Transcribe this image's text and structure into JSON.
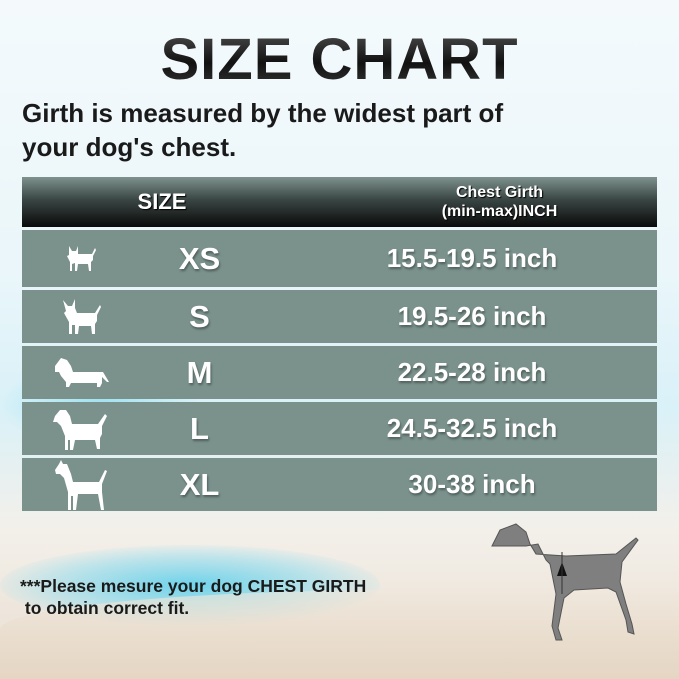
{
  "title": "SIZE CHART",
  "subtitle": [
    "Girth is measured by the widest part of",
    "your dog's chest."
  ],
  "table": {
    "headers": {
      "size": "SIZE",
      "girth_line1": "Chest Girth",
      "girth_line2": "(min-max)INCH"
    },
    "rows": [
      {
        "icon": "chihuahua-icon",
        "size": "XS",
        "girth": "15.5-19.5 inch"
      },
      {
        "icon": "small-dog-icon",
        "size": "S",
        "girth": "19.5-26 inch"
      },
      {
        "icon": "dachshund-icon",
        "size": "M",
        "girth": "22.5-28 inch"
      },
      {
        "icon": "medium-dog-icon",
        "size": "L",
        "girth": "24.5-32.5 inch"
      },
      {
        "icon": "great-dane-icon",
        "size": "XL",
        "girth": "30-38 inch"
      }
    ]
  },
  "note": [
    "***Please mesure your dog CHEST GIRTH",
    " to obtain correct fit."
  ],
  "colors": {
    "row": "#7a918c",
    "header": "#0a0a0a",
    "dog_illustration": "#7f7f7f"
  }
}
